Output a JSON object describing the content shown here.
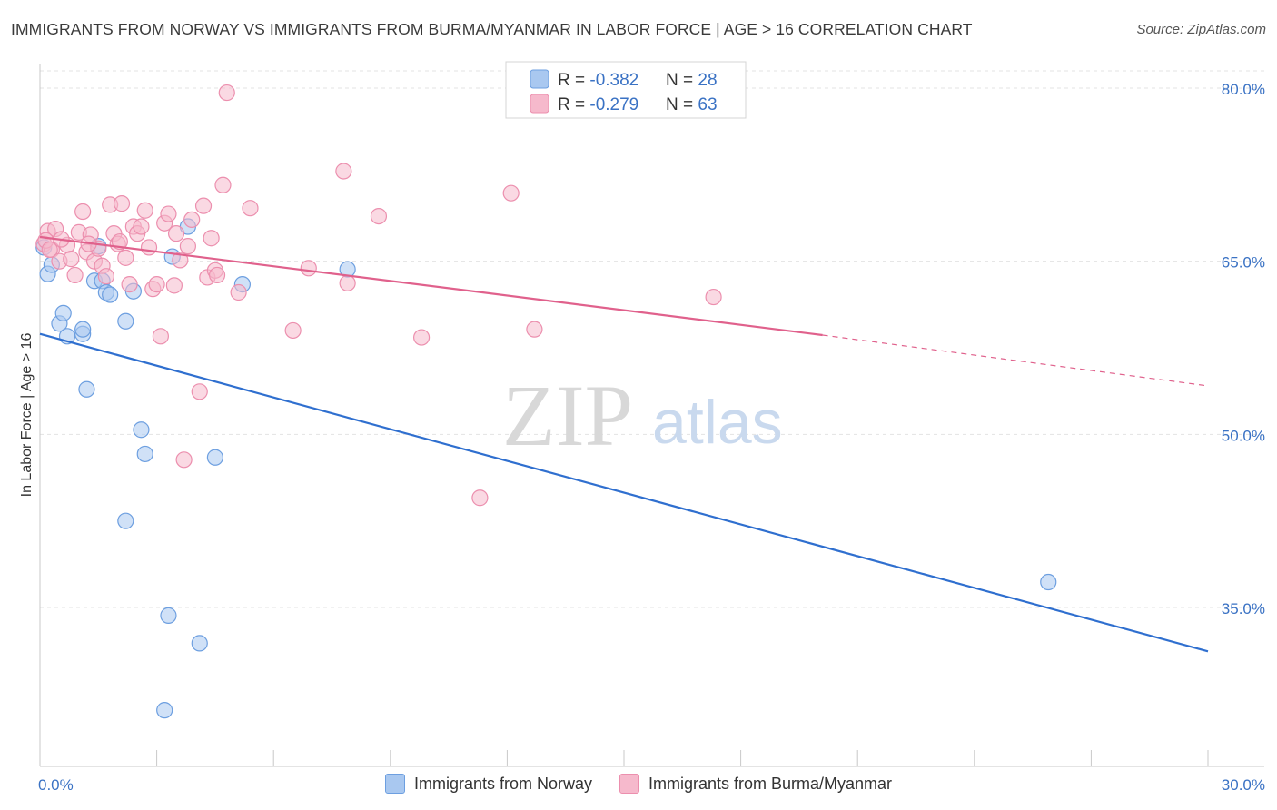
{
  "header": {
    "title": "IMMIGRANTS FROM NORWAY VS IMMIGRANTS FROM BURMA/MYANMAR IN LABOR FORCE | AGE > 16 CORRELATION CHART",
    "source": "Source: ZipAtlas.com"
  },
  "watermark": {
    "zip": "ZIP",
    "atlas": "atlas"
  },
  "legend": {
    "rows": [
      {
        "r_label": "R = ",
        "r_value": "-0.382",
        "n_label": "N = ",
        "n_value": "28"
      },
      {
        "r_label": "R = ",
        "r_value": "-0.279",
        "n_label": "N = ",
        "n_value": "63"
      }
    ]
  },
  "bottom_legend": {
    "series1": "Immigrants from Norway",
    "series2": "Immigrants from Burma/Myanmar"
  },
  "colors": {
    "norway_fill": "#a9c8f0",
    "norway_stroke": "#6d9fe0",
    "norway_line": "#2f6fcf",
    "burma_fill": "#f6b9cc",
    "burma_stroke": "#ec8fae",
    "burma_line": "#e0618c",
    "tick_label": "#3a72c4",
    "grid": "#e3e3e3"
  },
  "chart_data": {
    "type": "scatter",
    "title": "IMMIGRANTS FROM NORWAY VS IMMIGRANTS FROM BURMA/MYANMAR IN LABOR FORCE | AGE > 16 CORRELATION CHART",
    "xlabel": "",
    "ylabel": "In Labor Force | Age > 16",
    "xlim": [
      0,
      30
    ],
    "ylim": [
      22,
      81.5
    ],
    "x_tick_labels": [
      {
        "value": 0,
        "label": "0.0%"
      },
      {
        "value": 30,
        "label": "30.0%"
      }
    ],
    "y_tick_labels": [
      {
        "value": 80,
        "label": "80.0%"
      },
      {
        "value": 65,
        "label": "65.0%"
      },
      {
        "value": 50,
        "label": "50.0%"
      },
      {
        "value": 35,
        "label": "35.0%"
      }
    ],
    "x_minor_ticks": [
      3,
      6,
      9,
      12,
      15,
      18,
      21,
      24,
      27,
      30
    ],
    "series": [
      {
        "name": "Immigrants from Norway",
        "r": -0.382,
        "n": 28,
        "points": [
          [
            0.1,
            66.2
          ],
          [
            0.2,
            63.9
          ],
          [
            0.3,
            64.7
          ],
          [
            0.5,
            59.6
          ],
          [
            0.6,
            60.5
          ],
          [
            0.7,
            58.5
          ],
          [
            1.1,
            58.7
          ],
          [
            1.1,
            59.1
          ],
          [
            1.2,
            53.9
          ],
          [
            1.5,
            66.3
          ],
          [
            1.4,
            63.3
          ],
          [
            1.6,
            63.3
          ],
          [
            1.7,
            62.3
          ],
          [
            1.8,
            62.1
          ],
          [
            2.2,
            42.5
          ],
          [
            2.2,
            59.8
          ],
          [
            2.4,
            62.4
          ],
          [
            2.6,
            50.4
          ],
          [
            2.7,
            48.3
          ],
          [
            3.2,
            26.1
          ],
          [
            3.4,
            65.4
          ],
          [
            3.3,
            34.3
          ],
          [
            3.8,
            68.0
          ],
          [
            4.1,
            31.9
          ],
          [
            4.5,
            48.0
          ],
          [
            5.2,
            63.0
          ],
          [
            7.9,
            64.3
          ],
          [
            25.9,
            37.2
          ]
        ],
        "trend": {
          "x": [
            0,
            30
          ],
          "y": [
            58.7,
            31.2
          ],
          "dashed_from": null
        }
      },
      {
        "name": "Immigrants from Burma/Myanmar",
        "r": -0.279,
        "n": 63,
        "points": [
          [
            0.1,
            66.5
          ],
          [
            0.2,
            67.6
          ],
          [
            0.3,
            66.0
          ],
          [
            0.4,
            67.8
          ],
          [
            0.5,
            65.0
          ],
          [
            0.7,
            66.4
          ],
          [
            0.8,
            65.2
          ],
          [
            0.9,
            63.8
          ],
          [
            1.0,
            67.5
          ],
          [
            1.1,
            69.3
          ],
          [
            1.2,
            65.8
          ],
          [
            1.3,
            67.3
          ],
          [
            1.4,
            65.0
          ],
          [
            1.5,
            66.1
          ],
          [
            1.6,
            64.6
          ],
          [
            1.7,
            63.7
          ],
          [
            1.8,
            69.9
          ],
          [
            1.9,
            67.4
          ],
          [
            2.0,
            66.5
          ],
          [
            2.1,
            70.0
          ],
          [
            2.2,
            65.3
          ],
          [
            2.3,
            63.0
          ],
          [
            2.4,
            68.0
          ],
          [
            2.5,
            67.4
          ],
          [
            2.6,
            68.0
          ],
          [
            2.7,
            69.4
          ],
          [
            2.8,
            66.2
          ],
          [
            2.9,
            62.6
          ],
          [
            3.0,
            63.0
          ],
          [
            3.1,
            58.5
          ],
          [
            3.2,
            68.3
          ],
          [
            3.3,
            69.1
          ],
          [
            3.5,
            67.4
          ],
          [
            3.6,
            65.1
          ],
          [
            3.7,
            47.8
          ],
          [
            3.8,
            66.3
          ],
          [
            3.9,
            68.6
          ],
          [
            4.1,
            53.7
          ],
          [
            4.2,
            69.8
          ],
          [
            4.3,
            63.6
          ],
          [
            4.4,
            67.0
          ],
          [
            4.5,
            64.2
          ],
          [
            4.7,
            71.6
          ],
          [
            4.8,
            79.6
          ],
          [
            5.1,
            62.3
          ],
          [
            5.4,
            69.6
          ],
          [
            6.5,
            59.0
          ],
          [
            6.9,
            64.4
          ],
          [
            7.8,
            72.8
          ],
          [
            7.9,
            63.1
          ],
          [
            8.7,
            68.9
          ],
          [
            9.8,
            58.4
          ],
          [
            11.3,
            44.5
          ],
          [
            12.1,
            70.9
          ],
          [
            12.7,
            59.1
          ],
          [
            17.3,
            61.9
          ],
          [
            0.15,
            66.8
          ],
          [
            0.25,
            66.0
          ],
          [
            0.55,
            66.9
          ],
          [
            1.25,
            66.5
          ],
          [
            2.05,
            66.7
          ],
          [
            3.45,
            62.9
          ],
          [
            4.55,
            63.8
          ]
        ],
        "trend": {
          "x": [
            0,
            20.1
          ],
          "y": [
            67.1,
            58.6
          ],
          "dashed_to": [
            30,
            54.2
          ]
        }
      }
    ]
  }
}
